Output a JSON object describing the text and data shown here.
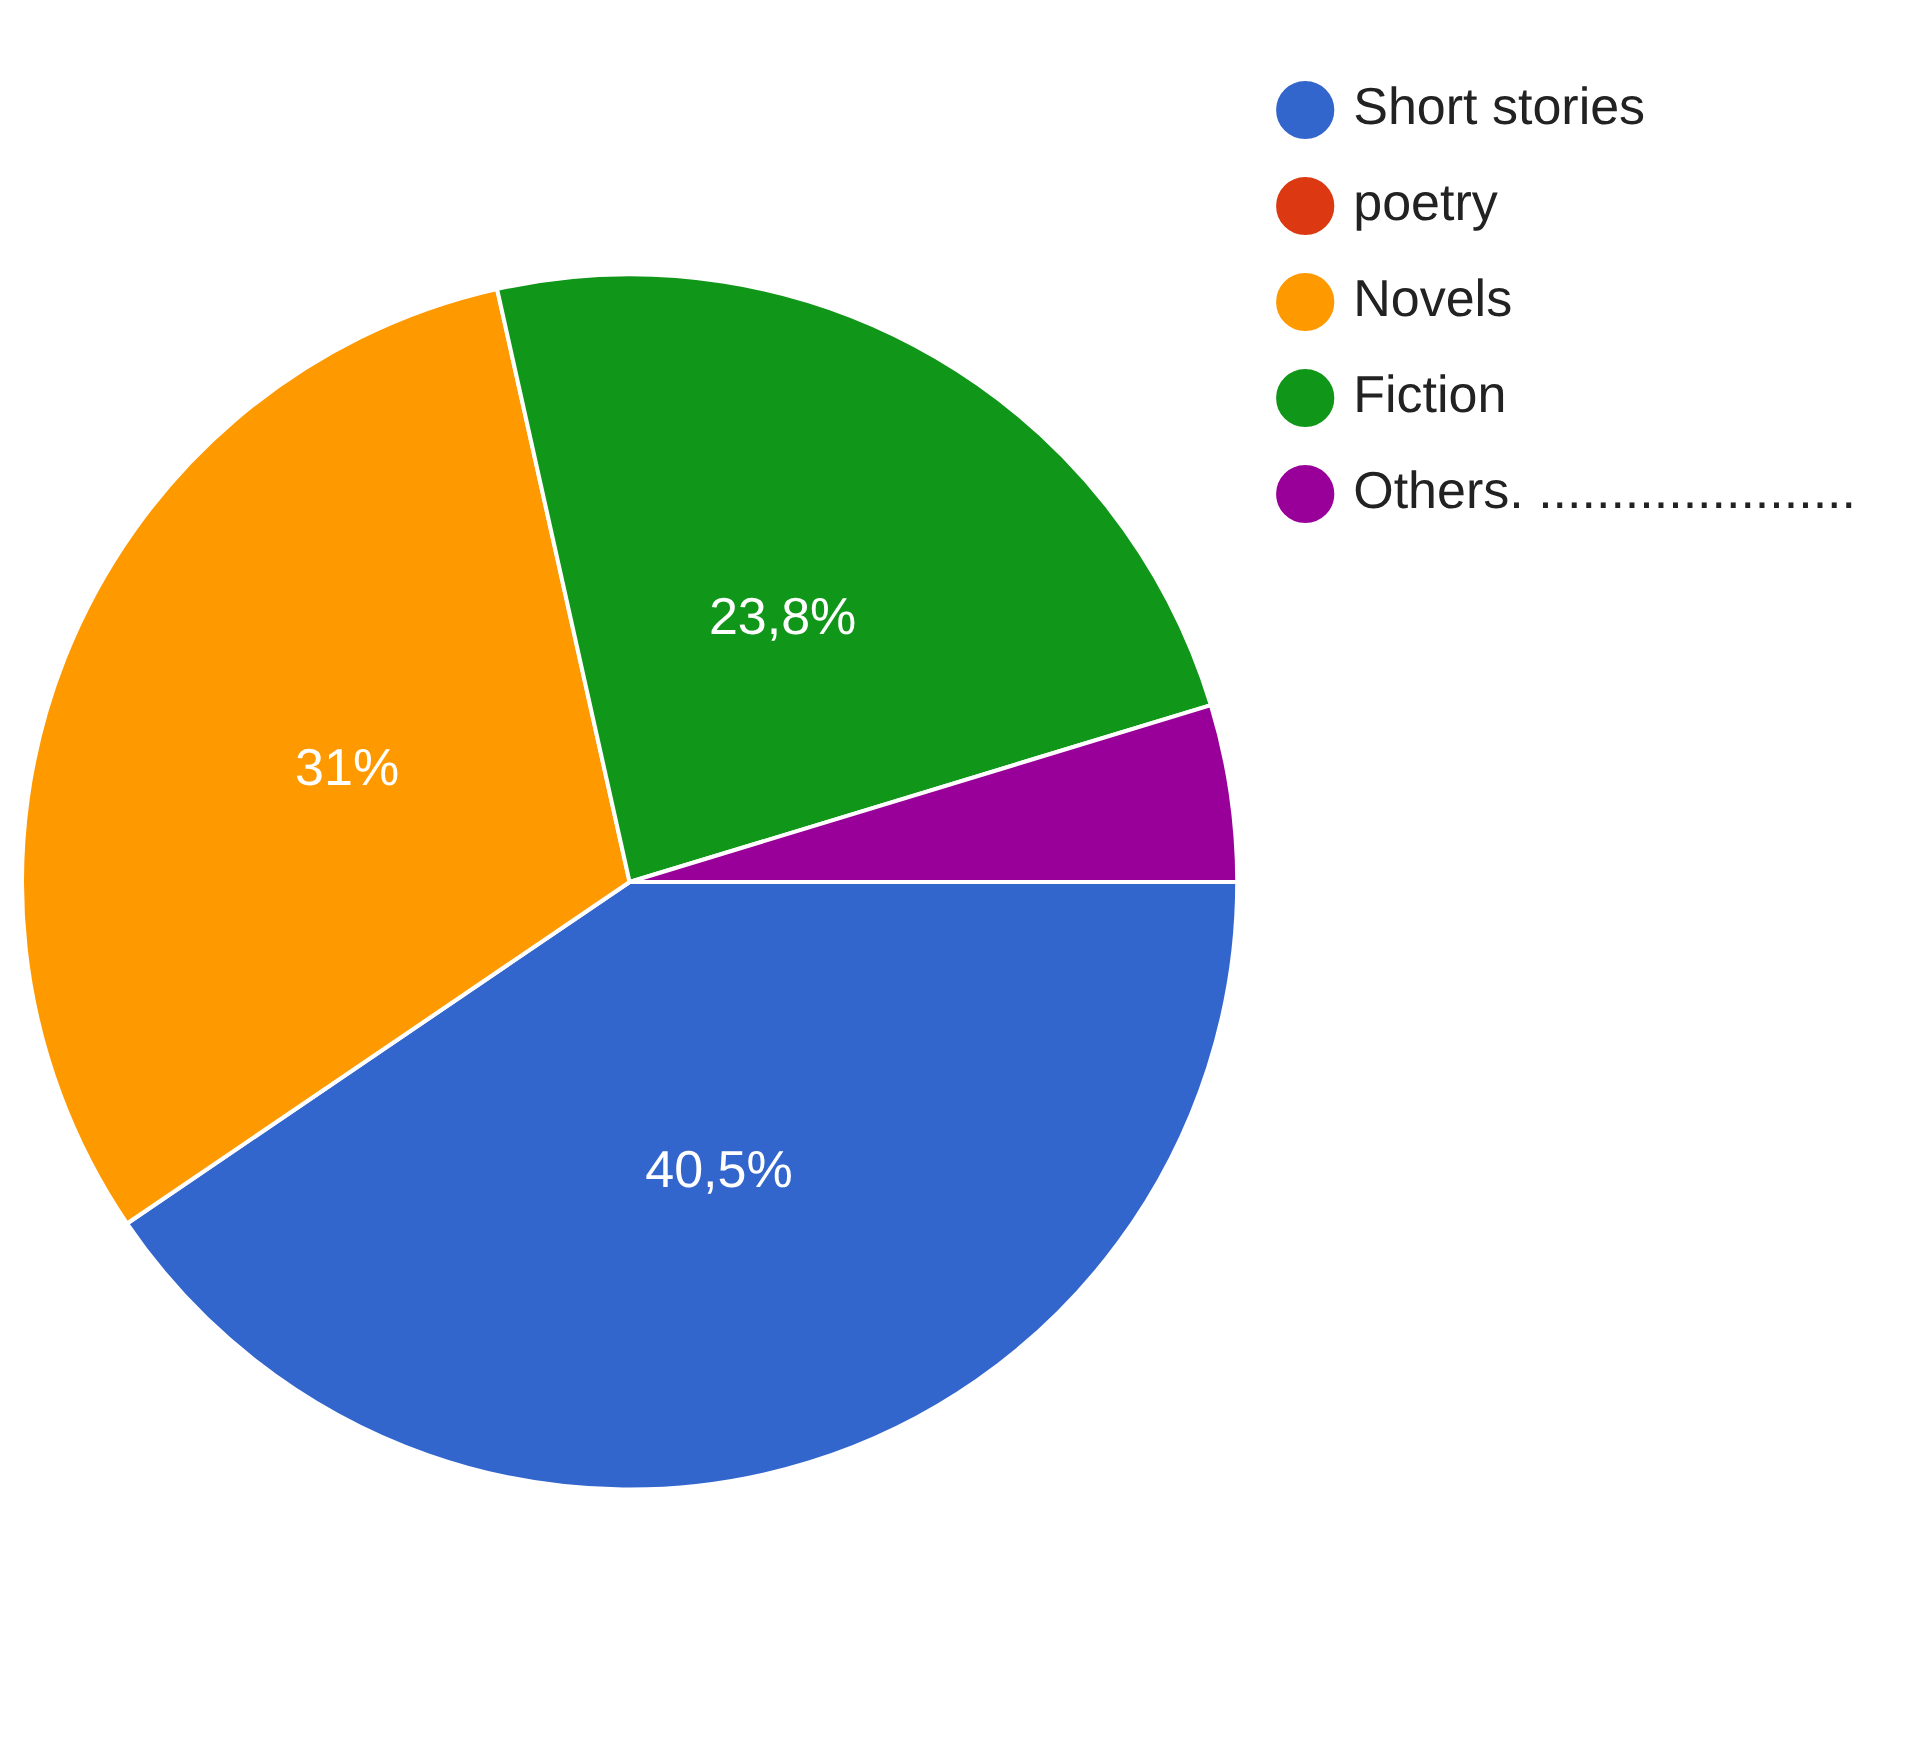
{
  "chart_data": {
    "type": "pie",
    "categories": [
      "Short stories",
      "poetry",
      "Novels",
      "Fiction",
      "Others. ......................"
    ],
    "values": [
      40.5,
      0,
      31,
      23.8,
      4.7
    ],
    "colors": [
      "#3366cc",
      "#dc3912",
      "#ff9900",
      "#109618",
      "#990099"
    ],
    "value_labels": [
      "40,5%",
      null,
      "31%",
      "23,8%",
      null
    ],
    "legend": "top right"
  }
}
